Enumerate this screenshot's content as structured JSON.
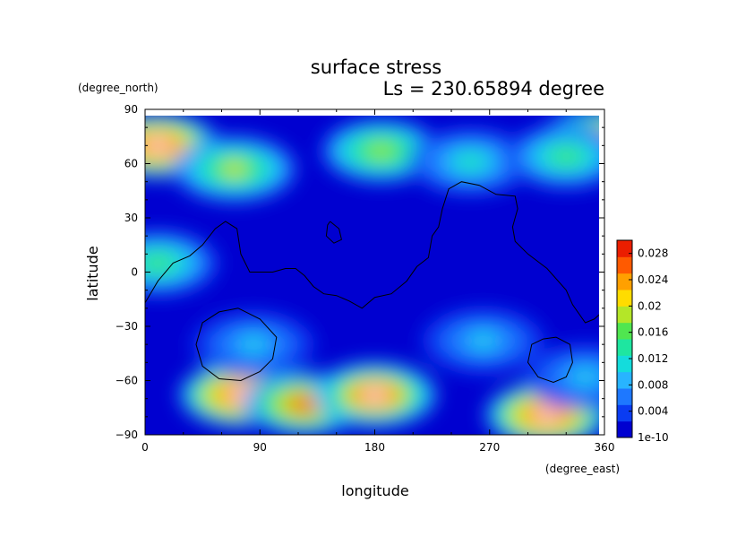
{
  "chart_data": {
    "type": "heatmap",
    "title": "surface stress",
    "subtitle": "Ls = 230.65894 degree",
    "xlabel": "longitude",
    "ylabel": "latitude",
    "x_unit": "(degree_east)",
    "y_unit": "(degree_north)",
    "xlim": [
      0,
      360
    ],
    "ylim": [
      -90,
      90
    ],
    "x_ticks": [
      "0",
      "90",
      "180",
      "270",
      "360"
    ],
    "y_ticks": [
      "90",
      "60",
      "30",
      "0",
      "−30",
      "−60",
      "−90"
    ],
    "colorbar": {
      "labels": [
        "0.028",
        "0.024",
        "0.02",
        "0.016",
        "0.012",
        "0.008",
        "0.004",
        "1e-10"
      ],
      "values": [
        0.028,
        0.024,
        0.02,
        0.016,
        0.012,
        0.008,
        0.004,
        1e-10
      ],
      "max": 0.03,
      "colors": [
        "#0000d0",
        "#0a3cf2",
        "#1e78ff",
        "#28b4ff",
        "#14dcdc",
        "#1ee6a0",
        "#50e650",
        "#b4e628",
        "#ffdc00",
        "#ffa000",
        "#ff5a00",
        "#eb1e00",
        "#ffffff"
      ]
    },
    "hotspots": [
      {
        "lon": 10,
        "lat": 70,
        "value": 0.032
      },
      {
        "lon": 355,
        "lat": 72,
        "value": 0.031
      },
      {
        "lon": 70,
        "lat": 57,
        "value": 0.02
      },
      {
        "lon": 185,
        "lat": 67,
        "value": 0.019
      },
      {
        "lon": 255,
        "lat": 61,
        "value": 0.013
      },
      {
        "lon": 330,
        "lat": 64,
        "value": 0.015
      },
      {
        "lon": 10,
        "lat": 5,
        "value": 0.016
      },
      {
        "lon": 75,
        "lat": -68,
        "value": 0.032
      },
      {
        "lon": 125,
        "lat": -73,
        "value": 0.028
      },
      {
        "lon": 180,
        "lat": -68,
        "value": 0.031
      },
      {
        "lon": 315,
        "lat": -79,
        "value": 0.032
      },
      {
        "lon": 265,
        "lat": -38,
        "value": 0.01
      },
      {
        "lon": 345,
        "lat": -58,
        "value": 0.01
      },
      {
        "lon": 85,
        "lat": -40,
        "value": 0.01
      }
    ],
    "contours": [
      {
        "name": "tharsis-outline",
        "lon_lat": [
          [
            0,
            -17
          ],
          [
            10,
            -5
          ],
          [
            22,
            5
          ],
          [
            35,
            9
          ],
          [
            45,
            15
          ],
          [
            55,
            24
          ],
          [
            63,
            28
          ],
          [
            72,
            24
          ],
          [
            75,
            10
          ],
          [
            82,
            0
          ],
          [
            100,
            0
          ],
          [
            110,
            2
          ],
          [
            118,
            2
          ],
          [
            125,
            -2
          ],
          [
            132,
            -8
          ],
          [
            140,
            -12
          ],
          [
            150,
            -13
          ],
          [
            160,
            -16
          ],
          [
            170,
            -20
          ],
          [
            180,
            -14
          ],
          [
            193,
            -12
          ],
          [
            205,
            -5
          ],
          [
            213,
            3
          ],
          [
            222,
            8
          ],
          [
            225,
            20
          ],
          [
            230,
            25
          ],
          [
            233,
            35
          ],
          [
            238,
            46
          ],
          [
            248,
            50
          ],
          [
            262,
            48
          ],
          [
            275,
            43
          ],
          [
            290,
            42
          ],
          [
            292,
            35
          ],
          [
            288,
            25
          ],
          [
            290,
            17
          ],
          [
            300,
            10
          ],
          [
            315,
            2
          ],
          [
            330,
            -10
          ],
          [
            335,
            -18
          ],
          [
            345,
            -28
          ],
          [
            352,
            -26
          ],
          [
            360,
            -21
          ]
        ]
      },
      {
        "name": "hellas-outline",
        "lon_lat": [
          [
            73,
            -20
          ],
          [
            90,
            -26
          ],
          [
            103,
            -36
          ],
          [
            100,
            -48
          ],
          [
            90,
            -55
          ],
          [
            75,
            -60
          ],
          [
            58,
            -59
          ],
          [
            45,
            -52
          ],
          [
            40,
            -40
          ],
          [
            45,
            -28
          ],
          [
            58,
            -22
          ],
          [
            73,
            -20
          ]
        ]
      },
      {
        "name": "argyre-outline",
        "lon_lat": [
          [
            322,
            -36
          ],
          [
            333,
            -40
          ],
          [
            335,
            -50
          ],
          [
            330,
            -58
          ],
          [
            320,
            -61
          ],
          [
            308,
            -58
          ],
          [
            300,
            -50
          ],
          [
            303,
            -40
          ],
          [
            312,
            -37
          ],
          [
            322,
            -36
          ]
        ]
      },
      {
        "name": "elysium-outline",
        "lon_lat": [
          [
            145,
            28
          ],
          [
            152,
            24
          ],
          [
            154,
            18
          ],
          [
            148,
            16
          ],
          [
            142,
            20
          ],
          [
            143,
            26
          ],
          [
            145,
            28
          ]
        ]
      }
    ]
  }
}
